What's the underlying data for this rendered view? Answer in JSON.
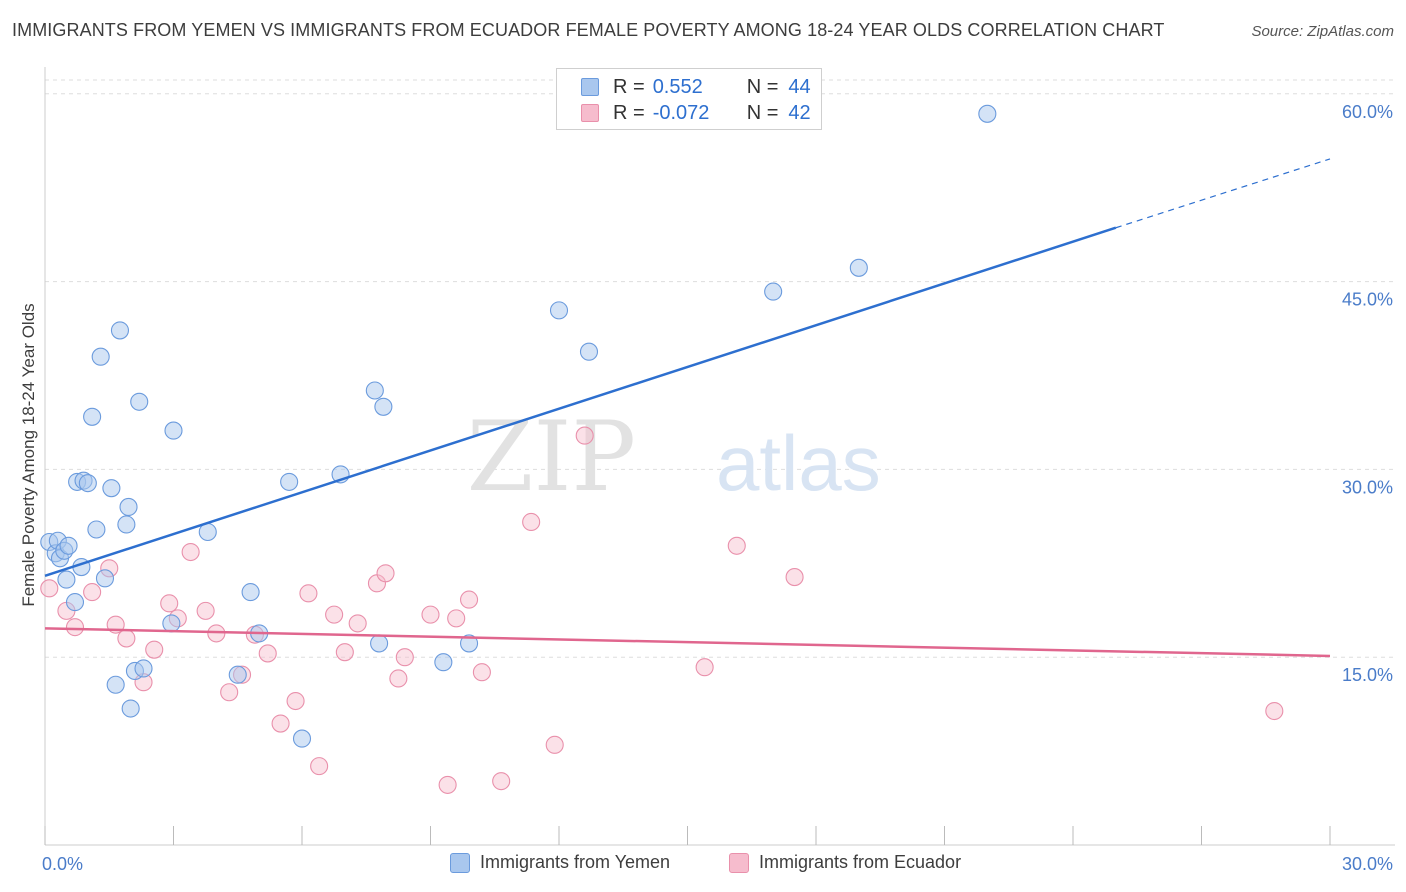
{
  "title": "IMMIGRANTS FROM YEMEN VS IMMIGRANTS FROM ECUADOR FEMALE POVERTY AMONG 18-24 YEAR OLDS CORRELATION CHART",
  "source": "Source: ZipAtlas.com",
  "watermark": {
    "part1": "ZIP",
    "part2": "atlas"
  },
  "colors": {
    "yemen_fill": "#a9c7ee",
    "yemen_stroke": "#6b9bdd",
    "yemen_line": "#2d6fcf",
    "ecuador_fill": "#f6bccd",
    "ecuador_stroke": "#e990ab",
    "ecuador_line": "#e0668e",
    "tick_label": "#4a7cc9",
    "grid": "#dddddd"
  },
  "legend": {
    "rows": [
      {
        "r_label": "R =",
        "r_value": "0.552",
        "n_label": "N =",
        "n_value": "44"
      },
      {
        "r_label": "R =",
        "r_value": "-0.072",
        "n_label": "N =",
        "n_value": "42"
      }
    ]
  },
  "chart_data": {
    "type": "scatter",
    "title": "IMMIGRANTS FROM YEMEN VS IMMIGRANTS FROM ECUADOR FEMALE POVERTY AMONG 18-24 YEAR OLDS CORRELATION CHART",
    "xlabel": "",
    "ylabel": "Female Poverty Among 18-24 Year Olds",
    "xlim": [
      0,
      30
    ],
    "ylim": [
      0,
      61.5
    ],
    "x_tick_labels": [
      "0.0%",
      "30.0%"
    ],
    "y_ticks": [
      15,
      30,
      45,
      60
    ],
    "y_tick_labels": [
      "15.0%",
      "30.0%",
      "45.0%",
      "60.0%"
    ],
    "x_minor_ticks": [
      0,
      3,
      6,
      9,
      12,
      15,
      18,
      21,
      24,
      27,
      30
    ],
    "grid": true,
    "legend_position": "bottom-center",
    "series": [
      {
        "name": "Immigrants from Yemen",
        "R": 0.552,
        "N": 44,
        "trend": {
          "x_start": 0.0,
          "y_start": 21.5,
          "x_solid_end": 25.0,
          "y_solid_end": 49.3,
          "x_end": 30.0,
          "y_end": 54.8
        },
        "points": [
          [
            0.1,
            24.2
          ],
          [
            0.25,
            23.3
          ],
          [
            0.3,
            24.3
          ],
          [
            0.35,
            22.9
          ],
          [
            0.45,
            23.5
          ],
          [
            0.5,
            21.2
          ],
          [
            0.55,
            23.9
          ],
          [
            0.7,
            19.4
          ],
          [
            0.75,
            29.0
          ],
          [
            0.85,
            22.2
          ],
          [
            0.9,
            29.1
          ],
          [
            1.0,
            28.9
          ],
          [
            1.1,
            34.2
          ],
          [
            1.2,
            25.2
          ],
          [
            1.3,
            39.0
          ],
          [
            1.4,
            21.3
          ],
          [
            1.55,
            28.5
          ],
          [
            1.65,
            12.8
          ],
          [
            1.75,
            41.1
          ],
          [
            1.9,
            25.6
          ],
          [
            1.95,
            27.0
          ],
          [
            2.0,
            10.9
          ],
          [
            2.1,
            13.9
          ],
          [
            2.2,
            35.4
          ],
          [
            2.3,
            14.1
          ],
          [
            2.95,
            17.7
          ],
          [
            3.0,
            33.1
          ],
          [
            3.8,
            25.0
          ],
          [
            4.5,
            13.6
          ],
          [
            4.8,
            20.2
          ],
          [
            5.0,
            16.9
          ],
          [
            5.7,
            29.0
          ],
          [
            6.0,
            8.5
          ],
          [
            6.9,
            29.6
          ],
          [
            7.7,
            36.3
          ],
          [
            7.8,
            16.1
          ],
          [
            7.9,
            35.0
          ],
          [
            9.3,
            14.6
          ],
          [
            9.9,
            16.1
          ],
          [
            12.0,
            42.7
          ],
          [
            12.7,
            39.4
          ],
          [
            17.0,
            44.2
          ],
          [
            19.0,
            46.1
          ],
          [
            22.0,
            58.4
          ]
        ]
      },
      {
        "name": "Immigrants from Ecuador",
        "R": -0.072,
        "N": 42,
        "trend": {
          "x_start": 0.0,
          "y_start": 17.3,
          "x_end": 30.0,
          "y_end": 15.1
        },
        "points": [
          [
            0.1,
            20.5
          ],
          [
            0.5,
            18.7
          ],
          [
            0.7,
            17.4
          ],
          [
            1.1,
            20.2
          ],
          [
            1.5,
            22.1
          ],
          [
            1.65,
            17.6
          ],
          [
            1.9,
            16.5
          ],
          [
            2.3,
            13.0
          ],
          [
            2.55,
            15.6
          ],
          [
            2.9,
            19.3
          ],
          [
            3.1,
            18.1
          ],
          [
            3.4,
            23.4
          ],
          [
            3.75,
            18.7
          ],
          [
            4.0,
            16.9
          ],
          [
            4.3,
            12.2
          ],
          [
            4.6,
            13.6
          ],
          [
            4.9,
            16.8
          ],
          [
            5.2,
            15.3
          ],
          [
            5.5,
            9.7
          ],
          [
            5.85,
            11.5
          ],
          [
            6.15,
            20.1
          ],
          [
            6.4,
            6.3
          ],
          [
            6.75,
            18.4
          ],
          [
            7.0,
            15.4
          ],
          [
            7.3,
            17.7
          ],
          [
            7.75,
            20.9
          ],
          [
            7.95,
            21.7
          ],
          [
            8.25,
            13.3
          ],
          [
            8.4,
            15.0
          ],
          [
            9.0,
            18.4
          ],
          [
            9.4,
            4.8
          ],
          [
            9.6,
            18.1
          ],
          [
            9.9,
            19.6
          ],
          [
            10.2,
            13.8
          ],
          [
            10.65,
            5.1
          ],
          [
            11.35,
            25.8
          ],
          [
            11.9,
            8.0
          ],
          [
            12.6,
            32.7
          ],
          [
            15.4,
            14.2
          ],
          [
            16.15,
            23.9
          ],
          [
            17.5,
            21.4
          ],
          [
            28.7,
            10.7
          ]
        ]
      }
    ]
  }
}
